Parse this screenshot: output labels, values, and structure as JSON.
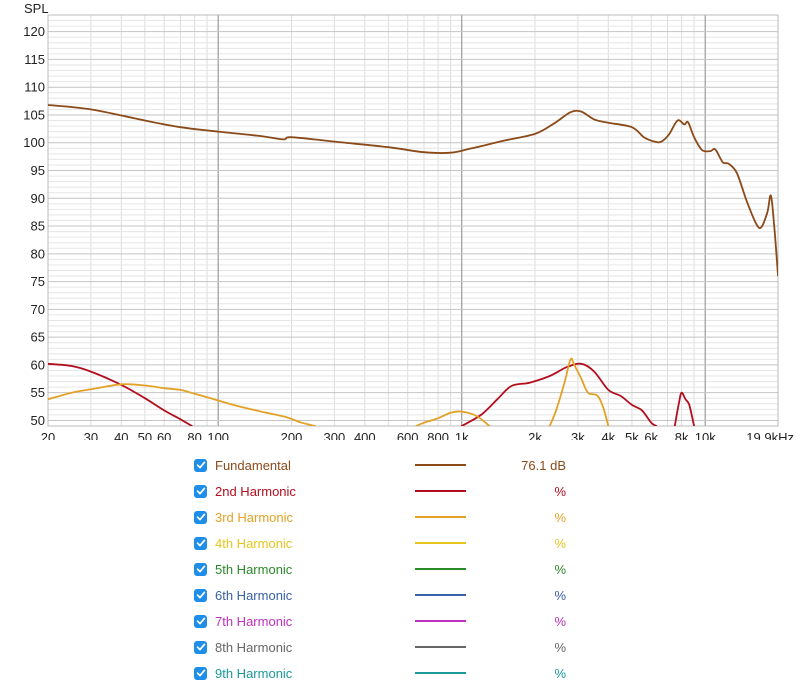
{
  "chart_data": {
    "type": "line",
    "ylabel": "SPL",
    "y_ticks": [
      "120",
      "115",
      "110",
      "105",
      "100",
      "95",
      "90",
      "85",
      "80",
      "75",
      "70",
      "65",
      "60",
      "55",
      "50"
    ],
    "ylim": [
      49,
      123
    ],
    "xlim": [
      20,
      19900
    ],
    "x_scale": "log",
    "x_ticks": [
      {
        "v": 20,
        "t": "20"
      },
      {
        "v": 30,
        "t": "30"
      },
      {
        "v": 40,
        "t": "40"
      },
      {
        "v": 50,
        "t": "50"
      },
      {
        "v": 60,
        "t": "60"
      },
      {
        "v": 80,
        "t": "80"
      },
      {
        "v": 100,
        "t": "100"
      },
      {
        "v": 200,
        "t": "200"
      },
      {
        "v": 300,
        "t": "300"
      },
      {
        "v": 400,
        "t": "400"
      },
      {
        "v": 600,
        "t": "600"
      },
      {
        "v": 800,
        "t": "800"
      },
      {
        "v": 1000,
        "t": "1k"
      },
      {
        "v": 2000,
        "t": "2k"
      },
      {
        "v": 3000,
        "t": "3k"
      },
      {
        "v": 4000,
        "t": "4k"
      },
      {
        "v": 5000,
        "t": "5k"
      },
      {
        "v": 6000,
        "t": "6k"
      },
      {
        "v": 8000,
        "t": "8k"
      },
      {
        "v": 10000,
        "t": "10k"
      },
      {
        "v": 19900,
        "t": "19.9kHz"
      }
    ],
    "grid": true,
    "series": [
      {
        "name": "Fundamental",
        "color": "#8b4a1a",
        "value": "76.1 dB",
        "points": [
          [
            20,
            106.8
          ],
          [
            30,
            106
          ],
          [
            50,
            104
          ],
          [
            70,
            102.8
          ],
          [
            100,
            102
          ],
          [
            150,
            101.2
          ],
          [
            185,
            100.6
          ],
          [
            200,
            101
          ],
          [
            300,
            100.2
          ],
          [
            500,
            99.2
          ],
          [
            700,
            98.3
          ],
          [
            900,
            98.2
          ],
          [
            1100,
            99
          ],
          [
            1500,
            100.4
          ],
          [
            2000,
            101.6
          ],
          [
            2400,
            103.5
          ],
          [
            2800,
            105.5
          ],
          [
            3100,
            105.6
          ],
          [
            3500,
            104.2
          ],
          [
            4000,
            103.6
          ],
          [
            5000,
            102.8
          ],
          [
            5600,
            101
          ],
          [
            6200,
            100.2
          ],
          [
            6600,
            100.2
          ],
          [
            7100,
            101.5
          ],
          [
            7700,
            104
          ],
          [
            8200,
            103.3
          ],
          [
            8500,
            103.7
          ],
          [
            9000,
            101
          ],
          [
            9700,
            98.7
          ],
          [
            10500,
            98.5
          ],
          [
            11000,
            98.8
          ],
          [
            11800,
            96.5
          ],
          [
            12500,
            96.2
          ],
          [
            13500,
            94.5
          ],
          [
            14800,
            89.5
          ],
          [
            16200,
            85.4
          ],
          [
            17000,
            84.8
          ],
          [
            18000,
            87.5
          ],
          [
            18600,
            90.5
          ],
          [
            19200,
            85
          ],
          [
            19900,
            76.1
          ]
        ]
      },
      {
        "name": "2nd Harmonic",
        "color": "#b20e1e",
        "value": "%",
        "segments": [
          [
            [
              20,
              60.2
            ],
            [
              25,
              59.8
            ],
            [
              30,
              58.8
            ],
            [
              40,
              56.4
            ],
            [
              50,
              54
            ],
            [
              60,
              51.8
            ],
            [
              70,
              50.2
            ],
            [
              78,
              49
            ]
          ],
          [
            [
              1000,
              49
            ],
            [
              1200,
              51
            ],
            [
              1400,
              53.8
            ],
            [
              1600,
              56.2
            ],
            [
              1900,
              56.8
            ],
            [
              2300,
              58
            ],
            [
              2700,
              59.6
            ],
            [
              3100,
              60.2
            ],
            [
              3500,
              58.8
            ],
            [
              4000,
              55.5
            ],
            [
              4500,
              54.4
            ],
            [
              5000,
              52.8
            ],
            [
              5500,
              51.8
            ],
            [
              6000,
              49.6
            ],
            [
              6300,
              49
            ]
          ],
          [
            [
              7500,
              49
            ],
            [
              7800,
              53.2
            ],
            [
              8000,
              55
            ],
            [
              8300,
              53.8
            ],
            [
              8600,
              52.8
            ],
            [
              9000,
              49
            ]
          ]
        ]
      },
      {
        "name": "3rd Harmonic",
        "color": "#e3a227",
        "value": "%",
        "segments": [
          [
            [
              20,
              53.8
            ],
            [
              25,
              55
            ],
            [
              30,
              55.6
            ],
            [
              40,
              56.5
            ],
            [
              50,
              56.3
            ],
            [
              60,
              55.8
            ],
            [
              70,
              55.5
            ],
            [
              80,
              54.8
            ],
            [
              100,
              53.6
            ],
            [
              120,
              52.6
            ],
            [
              150,
              51.6
            ],
            [
              190,
              50.6
            ],
            [
              220,
              49.6
            ],
            [
              250,
              49
            ]
          ],
          [
            [
              650,
              49
            ],
            [
              700,
              49.6
            ],
            [
              800,
              50.4
            ],
            [
              900,
              51.4
            ],
            [
              1000,
              51.6
            ],
            [
              1150,
              50.8
            ],
            [
              1300,
              49
            ]
          ],
          [
            [
              2300,
              49
            ],
            [
              2450,
              52
            ],
            [
              2650,
              57
            ],
            [
              2800,
              61
            ],
            [
              2900,
              60
            ],
            [
              3100,
              57.5
            ],
            [
              3300,
              55
            ],
            [
              3600,
              54.5
            ],
            [
              3800,
              52.5
            ],
            [
              4000,
              49
            ]
          ]
        ]
      },
      {
        "name": "4th Harmonic",
        "color": "#e6c61e",
        "value": "%",
        "segments": []
      },
      {
        "name": "5th Harmonic",
        "color": "#2a8a2a",
        "value": "%",
        "segments": []
      },
      {
        "name": "6th Harmonic",
        "color": "#3a62a8",
        "value": "%",
        "segments": []
      },
      {
        "name": "7th Harmonic",
        "color": "#c030c0",
        "value": "%",
        "segments": []
      },
      {
        "name": "8th Harmonic",
        "color": "#666666",
        "value": "%",
        "segments": []
      },
      {
        "name": "9th Harmonic",
        "color": "#1a9a9a",
        "value": "%",
        "segments": []
      }
    ]
  },
  "legend": {
    "items": [
      {
        "label": "Fundamental",
        "color": "#8b4a1a",
        "value": "76.1 dB",
        "checked": true
      },
      {
        "label": "2nd Harmonic",
        "color": "#b20e1e",
        "value": "%",
        "checked": true
      },
      {
        "label": "3rd Harmonic",
        "color": "#e3a227",
        "value": "%",
        "checked": true
      },
      {
        "label": "4th Harmonic",
        "color": "#e6c61e",
        "value": "%",
        "checked": true
      },
      {
        "label": "5th Harmonic",
        "color": "#2a8a2a",
        "value": "%",
        "checked": true
      },
      {
        "label": "6th Harmonic",
        "color": "#3a62a8",
        "value": "%",
        "checked": true
      },
      {
        "label": "7th Harmonic",
        "color": "#c030c0",
        "value": "%",
        "checked": true
      },
      {
        "label": "8th Harmonic",
        "color": "#666666",
        "value": "%",
        "checked": true
      },
      {
        "label": "9th Harmonic",
        "color": "#1a9a9a",
        "value": "%",
        "checked": true
      }
    ]
  }
}
